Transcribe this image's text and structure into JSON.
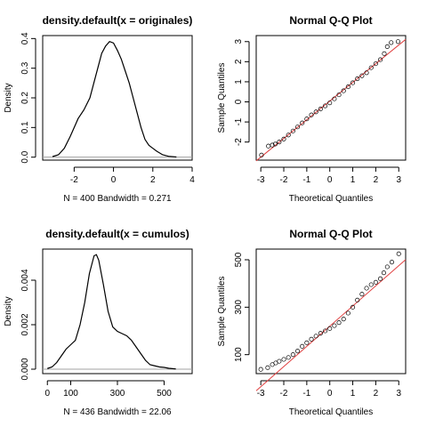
{
  "chart_data": [
    {
      "type": "line",
      "title": "density.default(x = originales)",
      "xlabel": "N = 400   Bandwidth = 0.271",
      "ylabel": "Density",
      "xlim": [
        -3.6,
        4.0
      ],
      "ylim": [
        -0.01,
        0.41
      ],
      "xticks": [
        -2,
        0,
        2,
        4
      ],
      "xtick_labels": [
        "-2",
        "0",
        "2",
        "4"
      ],
      "yticks": [
        0.0,
        0.1,
        0.2,
        0.3,
        0.4
      ],
      "ytick_labels": [
        "0.0",
        "0.1",
        "0.2",
        "0.3",
        "0.4"
      ],
      "zero_line": true,
      "series": [
        {
          "x": [
            -3.1,
            -2.8,
            -2.5,
            -2.2,
            -2.0,
            -1.8,
            -1.5,
            -1.2,
            -1.0,
            -0.8,
            -0.6,
            -0.4,
            -0.2,
            0.0,
            0.2,
            0.4,
            0.6,
            0.8,
            1.0,
            1.2,
            1.4,
            1.6,
            1.8,
            2.0,
            2.2,
            2.5,
            2.8,
            3.2
          ],
          "y": [
            0.002,
            0.008,
            0.03,
            0.07,
            0.1,
            0.13,
            0.16,
            0.2,
            0.25,
            0.3,
            0.35,
            0.375,
            0.39,
            0.385,
            0.36,
            0.33,
            0.29,
            0.25,
            0.2,
            0.15,
            0.1,
            0.06,
            0.04,
            0.03,
            0.02,
            0.008,
            0.003,
            0.0005
          ]
        }
      ]
    },
    {
      "type": "scatter",
      "title": "Normal Q-Q Plot",
      "xlabel": "Theoretical Quantiles",
      "ylabel": "Sample Quantiles",
      "xlim": [
        -3.2,
        3.3
      ],
      "ylim": [
        -2.9,
        3.3
      ],
      "xticks": [
        -3,
        -2,
        -1,
        0,
        1,
        2,
        3
      ],
      "xtick_labels": [
        "-3",
        "-2",
        "-1",
        "0",
        "1",
        "2",
        "3"
      ],
      "yticks": [
        -2,
        -1,
        0,
        1,
        2,
        3
      ],
      "ytick_labels": [
        "-2",
        "-1",
        "0",
        "1",
        "2",
        "3"
      ],
      "line_color": "#e04040",
      "reference_line": {
        "intercept": 0.04,
        "slope": 0.93
      },
      "points": {
        "x": [
          -2.97,
          -2.67,
          -2.5,
          -2.37,
          -2.2,
          -2.0,
          -1.8,
          -1.6,
          -1.4,
          -1.2,
          -1.0,
          -0.8,
          -0.6,
          -0.4,
          -0.2,
          0.0,
          0.2,
          0.4,
          0.6,
          0.8,
          1.0,
          1.2,
          1.4,
          1.6,
          1.8,
          2.0,
          2.2,
          2.37,
          2.5,
          2.67,
          2.97
        ],
        "y": [
          -2.65,
          -2.2,
          -2.15,
          -2.1,
          -2.0,
          -1.85,
          -1.65,
          -1.45,
          -1.25,
          -1.05,
          -0.85,
          -0.65,
          -0.5,
          -0.35,
          -0.2,
          -0.05,
          0.15,
          0.35,
          0.55,
          0.75,
          0.95,
          1.15,
          1.3,
          1.45,
          1.7,
          1.9,
          2.1,
          2.4,
          2.75,
          2.95,
          3.0
        ]
      }
    },
    {
      "type": "line",
      "title": "density.default(x = cumulos)",
      "xlabel": "N = 436   Bandwidth = 22.06",
      "ylabel": "Density",
      "xlim": [
        -20,
        620
      ],
      "ylim": [
        -0.0002,
        0.0054
      ],
      "xticks": [
        0,
        100,
        300,
        500
      ],
      "xtick_labels": [
        "0",
        "100",
        "300",
        "500"
      ],
      "yticks": [
        0.0,
        0.002,
        0.004
      ],
      "ytick_labels": [
        "0.000",
        "0.002",
        "0.004"
      ],
      "zero_line": true,
      "series": [
        {
          "x": [
            0,
            20,
            40,
            60,
            80,
            100,
            120,
            140,
            160,
            180,
            200,
            210,
            220,
            240,
            260,
            280,
            300,
            320,
            340,
            360,
            380,
            400,
            420,
            440,
            460,
            480,
            500,
            520,
            550
          ],
          "y": [
            3e-05,
            0.0001,
            0.0003,
            0.0006,
            0.0009,
            0.0011,
            0.0013,
            0.002,
            0.003,
            0.0043,
            0.0051,
            0.00515,
            0.0049,
            0.0038,
            0.0026,
            0.0019,
            0.0017,
            0.0016,
            0.0015,
            0.0013,
            0.001,
            0.0007,
            0.0004,
            0.0002,
            0.00015,
            0.0001,
            8e-05,
            4e-05,
            1e-05
          ]
        }
      ]
    },
    {
      "type": "scatter",
      "title": "Normal Q-Q Plot",
      "xlabel": "Theoretical Quantiles",
      "ylabel": "Sample Quantiles",
      "xlim": [
        -3.2,
        3.3
      ],
      "ylim": [
        20,
        545
      ],
      "xticks": [
        -3,
        -2,
        -1,
        0,
        1,
        2,
        3
      ],
      "xtick_labels": [
        "-3",
        "-2",
        "-1",
        "0",
        "1",
        "2",
        "3"
      ],
      "yticks": [
        100,
        300,
        500
      ],
      "ytick_labels": [
        "100",
        "300",
        "500"
      ],
      "line_color": "#e04040",
      "reference_line": {
        "intercept": 220,
        "slope": 85
      },
      "points": {
        "x": [
          -3.0,
          -2.7,
          -2.5,
          -2.35,
          -2.2,
          -2.0,
          -1.8,
          -1.6,
          -1.4,
          -1.2,
          -1.0,
          -0.8,
          -0.6,
          -0.4,
          -0.2,
          0.0,
          0.2,
          0.4,
          0.6,
          0.8,
          1.0,
          1.2,
          1.4,
          1.6,
          1.8,
          2.0,
          2.2,
          2.35,
          2.5,
          2.7,
          3.0
        ],
        "y": [
          38,
          45,
          58,
          65,
          72,
          80,
          88,
          100,
          115,
          135,
          150,
          165,
          178,
          190,
          200,
          210,
          222,
          235,
          250,
          275,
          300,
          330,
          355,
          380,
          395,
          405,
          420,
          445,
          470,
          490,
          525
        ]
      }
    }
  ]
}
